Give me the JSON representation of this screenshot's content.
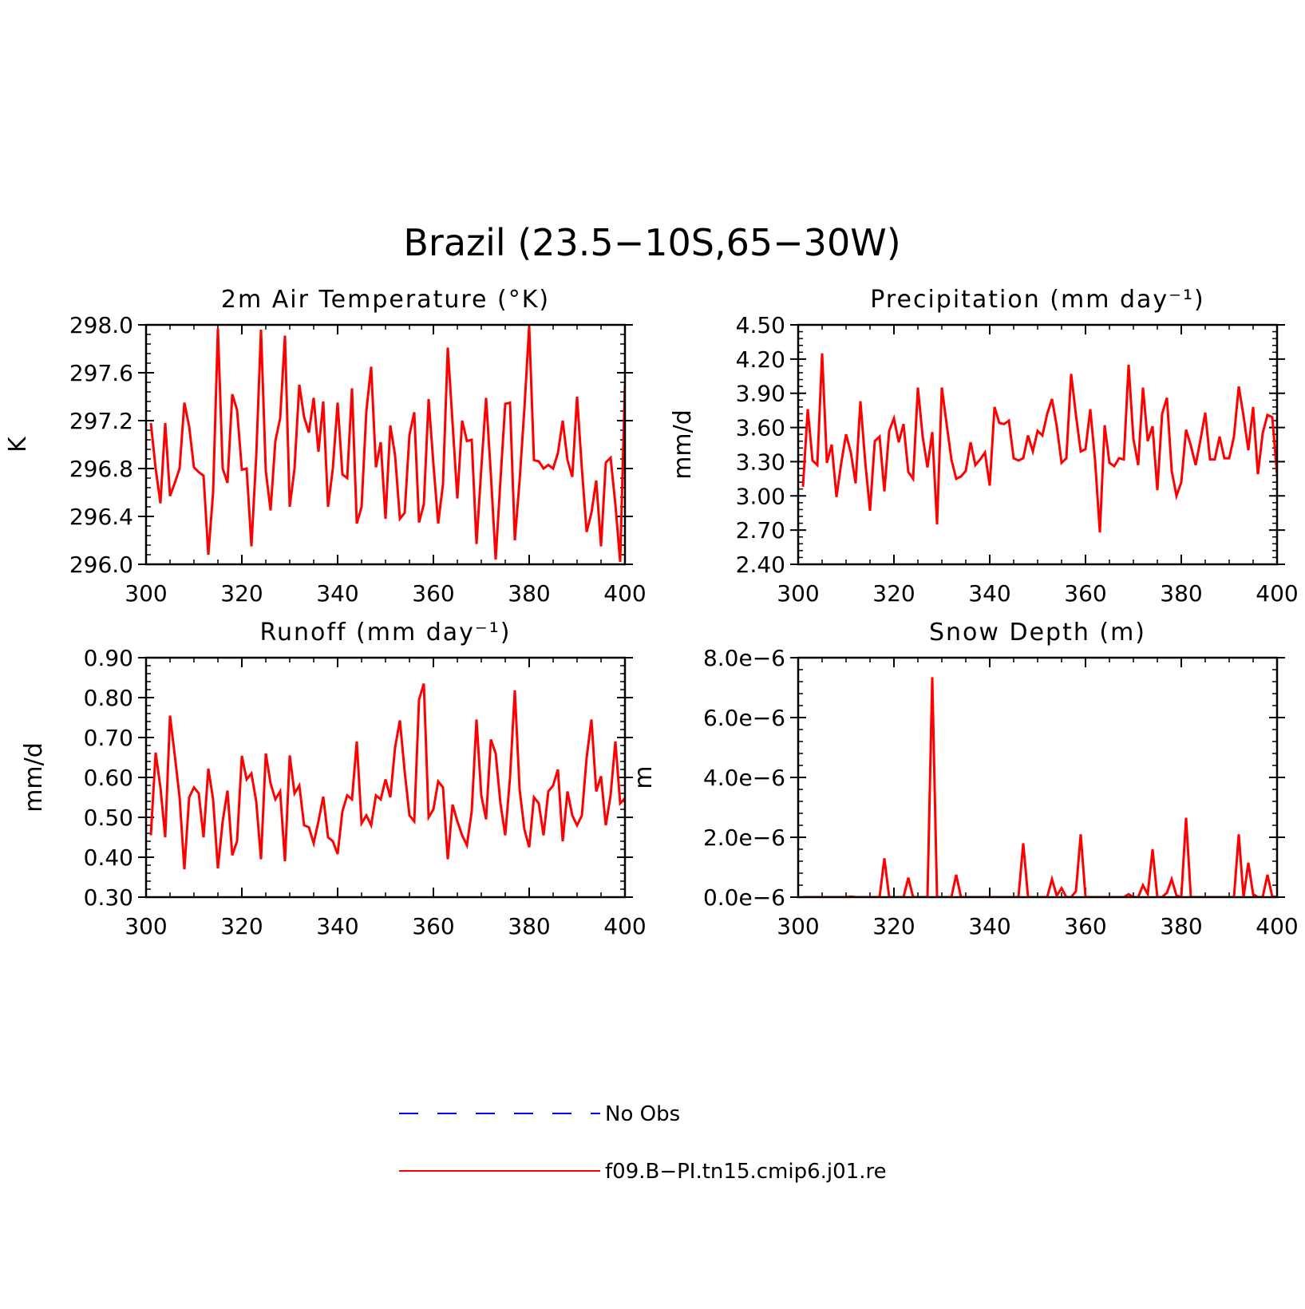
{
  "figure": {
    "title": "Brazil (23.5−10S,65−30W)"
  },
  "colors": {
    "model_line": "#ff0000",
    "obs_line": "#0000ff",
    "axis": "#000000",
    "background": "#ffffff"
  },
  "legend": {
    "entries": [
      {
        "label": "No Obs",
        "color": "#0000ff",
        "style": "dashed"
      },
      {
        "label": "f09.B−PI.tn15.cmip6.j01.re",
        "color": "#ff0000",
        "style": "solid"
      }
    ]
  },
  "chart_data": [
    {
      "type": "line",
      "title": "2m Air Temperature (°K)",
      "xlabel": "",
      "ylabel": "K",
      "xlim": [
        300,
        400
      ],
      "ylim": [
        296.0,
        298.0
      ],
      "xticks": [
        "300",
        "320",
        "340",
        "360",
        "380",
        "400"
      ],
      "yticks": [
        "296.0",
        "296.4",
        "296.8",
        "297.2",
        "297.6",
        "298.0"
      ],
      "x_start": 301,
      "series": [
        {
          "name": "f09.B−PI.tn15.cmip6.j01.re",
          "values": [
            297.18,
            296.8,
            296.51,
            297.18,
            296.57,
            296.68,
            296.8,
            297.35,
            297.15,
            296.81,
            296.77,
            296.74,
            296.08,
            296.6,
            297.97,
            296.8,
            296.68,
            297.42,
            297.29,
            296.79,
            296.8,
            296.15,
            296.9,
            297.96,
            296.78,
            296.45,
            297.03,
            297.22,
            297.91,
            296.48,
            296.8,
            297.5,
            297.23,
            297.1,
            297.39,
            296.94,
            297.36,
            296.48,
            296.8,
            297.35,
            296.75,
            296.72,
            297.47,
            296.34,
            296.48,
            297.28,
            297.65,
            296.81,
            297.02,
            296.38,
            297.16,
            296.91,
            296.38,
            296.43,
            297.08,
            297.27,
            296.35,
            296.5,
            297.38,
            296.84,
            296.34,
            296.67,
            297.81,
            297.18,
            296.55,
            297.2,
            297.03,
            297.04,
            296.17,
            296.8,
            297.39,
            296.75,
            296.04,
            296.7,
            297.34,
            297.35,
            296.2,
            296.7,
            297.3,
            297.99,
            296.87,
            296.86,
            296.8,
            296.83,
            296.8,
            296.93,
            297.2,
            296.87,
            296.73,
            297.4,
            296.8,
            296.27,
            296.43,
            296.7,
            296.15,
            296.85,
            296.89,
            296.5,
            296.02,
            297.5
          ]
        }
      ]
    },
    {
      "type": "line",
      "title": "Precipitation (mm day⁻¹)",
      "xlabel": "",
      "ylabel": "mm/d",
      "xlim": [
        300,
        400
      ],
      "ylim": [
        2.4,
        4.5
      ],
      "xticks": [
        "300",
        "320",
        "340",
        "360",
        "380",
        "400"
      ],
      "yticks": [
        "2.40",
        "2.70",
        "3.00",
        "3.30",
        "3.60",
        "3.90",
        "4.20",
        "4.50"
      ],
      "x_start": 301,
      "series": [
        {
          "name": "f09.B−PI.tn15.cmip6.j01.re",
          "values": [
            3.08,
            3.76,
            3.31,
            3.27,
            4.25,
            3.29,
            3.45,
            2.99,
            3.29,
            3.54,
            3.38,
            3.11,
            3.83,
            3.3,
            2.87,
            3.48,
            3.52,
            3.04,
            3.57,
            3.68,
            3.47,
            3.63,
            3.21,
            3.15,
            3.95,
            3.52,
            3.25,
            3.56,
            2.75,
            3.95,
            3.63,
            3.32,
            3.15,
            3.17,
            3.22,
            3.47,
            3.27,
            3.32,
            3.38,
            3.09,
            3.78,
            3.64,
            3.63,
            3.66,
            3.33,
            3.31,
            3.33,
            3.53,
            3.39,
            3.57,
            3.53,
            3.72,
            3.85,
            3.61,
            3.29,
            3.33,
            4.07,
            3.71,
            3.39,
            3.41,
            3.76,
            3.31,
            2.68,
            3.62,
            3.29,
            3.26,
            3.33,
            3.32,
            4.15,
            3.5,
            3.27,
            3.95,
            3.48,
            3.61,
            3.05,
            3.72,
            3.86,
            3.22,
            3.0,
            3.12,
            3.58,
            3.44,
            3.27,
            3.49,
            3.73,
            3.32,
            3.32,
            3.52,
            3.33,
            3.33,
            3.52,
            3.96,
            3.7,
            3.4,
            3.78,
            3.19,
            3.55,
            3.71,
            3.69,
            3.19
          ]
        }
      ]
    },
    {
      "type": "line",
      "title": "Runoff (mm day⁻¹)",
      "xlabel": "",
      "ylabel": "mm/d",
      "xlim": [
        300,
        400
      ],
      "ylim": [
        0.3,
        0.9
      ],
      "xticks": [
        "300",
        "320",
        "340",
        "360",
        "380",
        "400"
      ],
      "yticks": [
        "0.30",
        "0.40",
        "0.50",
        "0.60",
        "0.70",
        "0.80",
        "0.90"
      ],
      "x_start": 301,
      "series": [
        {
          "name": "f09.B−PI.tn15.cmip6.j01.re",
          "values": [
            0.455,
            0.662,
            0.575,
            0.45,
            0.755,
            0.655,
            0.55,
            0.37,
            0.55,
            0.575,
            0.56,
            0.45,
            0.622,
            0.545,
            0.372,
            0.49,
            0.567,
            0.405,
            0.44,
            0.654,
            0.595,
            0.61,
            0.54,
            0.395,
            0.66,
            0.585,
            0.545,
            0.565,
            0.39,
            0.655,
            0.56,
            0.58,
            0.48,
            0.475,
            0.435,
            0.49,
            0.552,
            0.45,
            0.44,
            0.408,
            0.515,
            0.555,
            0.545,
            0.69,
            0.485,
            0.505,
            0.48,
            0.555,
            0.545,
            0.595,
            0.55,
            0.675,
            0.743,
            0.615,
            0.505,
            0.49,
            0.795,
            0.835,
            0.5,
            0.52,
            0.59,
            0.575,
            0.395,
            0.532,
            0.49,
            0.455,
            0.43,
            0.515,
            0.745,
            0.555,
            0.495,
            0.695,
            0.66,
            0.535,
            0.455,
            0.6,
            0.818,
            0.57,
            0.47,
            0.425,
            0.55,
            0.535,
            0.455,
            0.565,
            0.58,
            0.62,
            0.44,
            0.565,
            0.505,
            0.48,
            0.505,
            0.65,
            0.745,
            0.565,
            0.603,
            0.48,
            0.555,
            0.69,
            0.535,
            0.548
          ]
        }
      ]
    },
    {
      "type": "line",
      "title": "Snow Depth (m)",
      "xlabel": "",
      "ylabel": "m",
      "xlim": [
        300,
        400
      ],
      "ylim": [
        0.0,
        8e-06
      ],
      "xticks": [
        "300",
        "320",
        "340",
        "360",
        "380",
        "400"
      ],
      "yticks": [
        "0.0e−6",
        "2.0e−6",
        "4.0e−6",
        "6.0e−6",
        "8.0e−6"
      ],
      "x_start": 301,
      "series": [
        {
          "name": "f09.B−PI.tn15.cmip6.j01.re",
          "values": [
            0,
            0,
            0,
            0,
            0,
            0,
            0,
            0,
            0,
            0,
            2e-08,
            0,
            0,
            0,
            0,
            0,
            0,
            1.3e-06,
            0,
            0,
            0,
            0,
            6.5e-07,
            0,
            0,
            0,
            0,
            7.35e-06,
            0,
            0,
            0,
            0,
            7.5e-07,
            0,
            0,
            0,
            0,
            0,
            0,
            0,
            0,
            0,
            0,
            0,
            0,
            0,
            1.8e-06,
            0,
            0,
            0,
            0,
            0,
            6e-07,
            5e-08,
            3e-07,
            0,
            0,
            2e-07,
            2.1e-06,
            0,
            0,
            0,
            0,
            0,
            0,
            0,
            0,
            0,
            1e-07,
            0,
            0,
            4e-07,
            1e-07,
            1.6e-06,
            0,
            0,
            1.5e-07,
            6e-07,
            5e-08,
            0,
            2.65e-06,
            0,
            0,
            0,
            0,
            0,
            0,
            0,
            0,
            0,
            0,
            2.1e-06,
            0,
            1.15e-06,
            1e-07,
            0,
            0,
            7.5e-07,
            2e-08,
            0
          ]
        }
      ]
    }
  ]
}
